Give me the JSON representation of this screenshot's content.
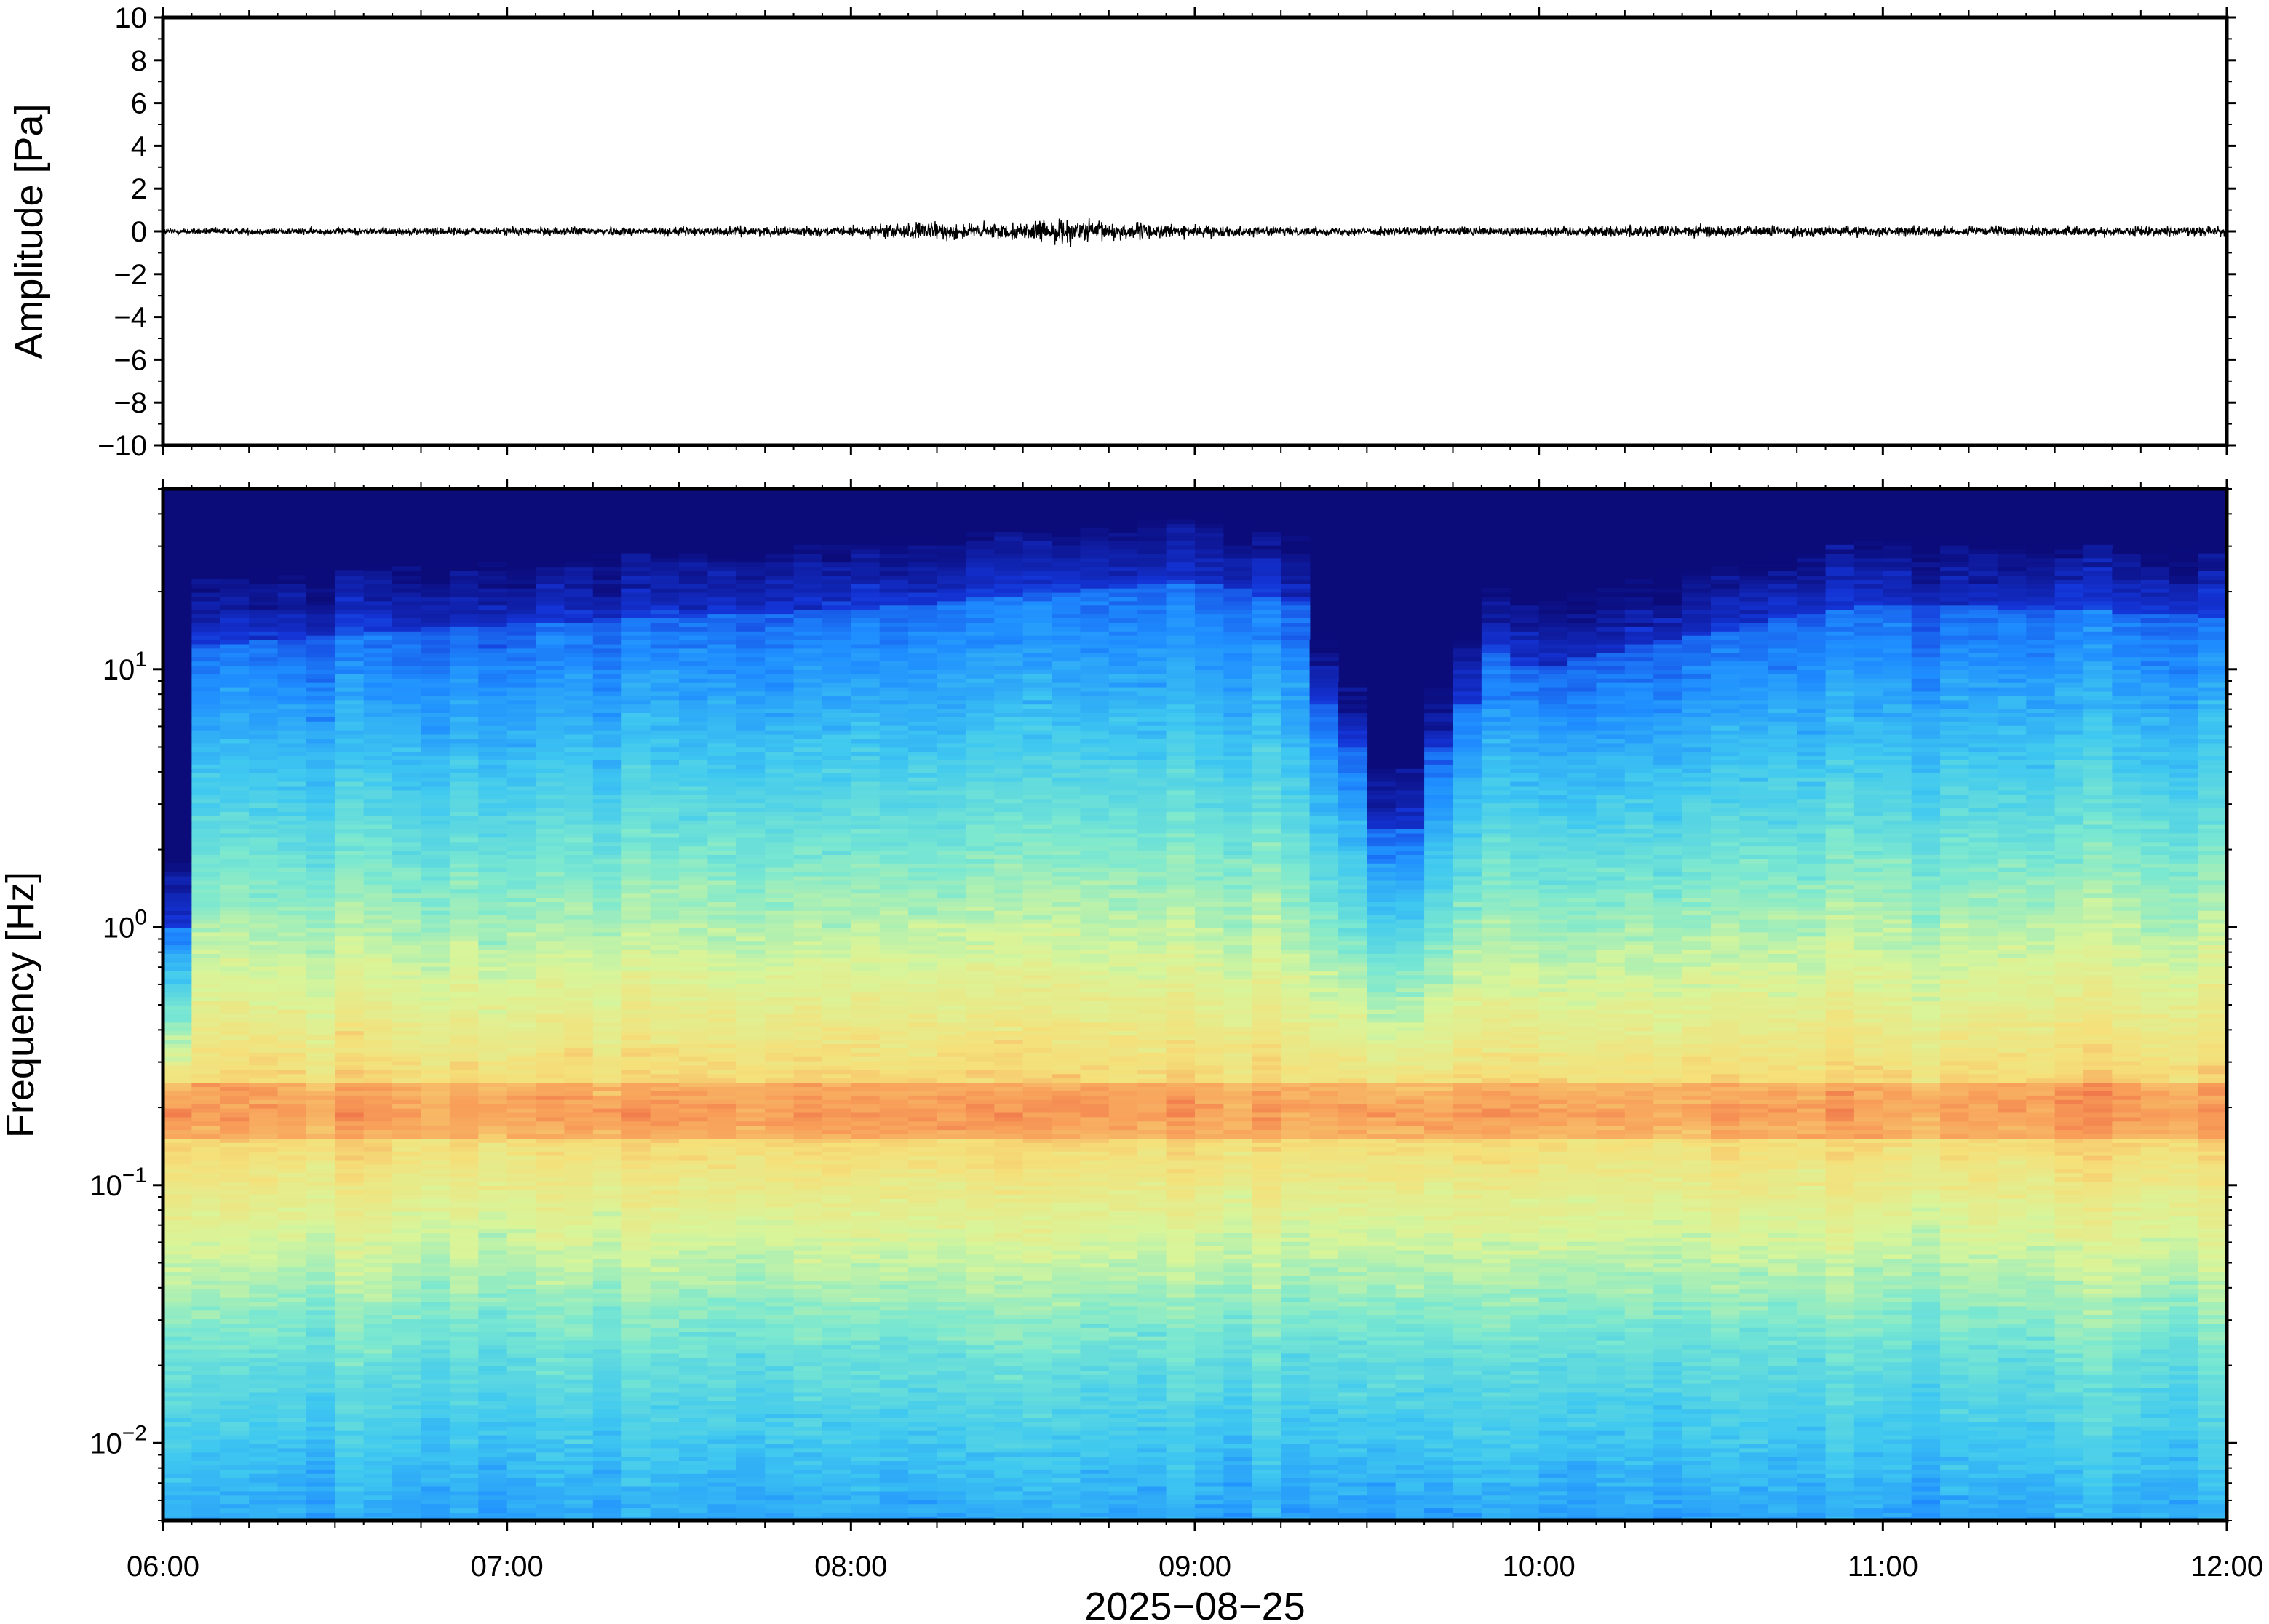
{
  "chart_data": [
    {
      "type": "line",
      "title": "",
      "ylabel": "Amplitude [Pa]",
      "ylim": [
        -10,
        10
      ],
      "yticks": [
        10,
        8,
        6,
        4,
        2,
        0,
        -2,
        -4,
        -6,
        -8,
        -10
      ],
      "ytick_labels": [
        "10",
        "8",
        "6",
        "4",
        "2",
        "0",
        "−2",
        "−4",
        "−6",
        "−8",
        "−10"
      ],
      "x_range": [
        "06:00",
        "12:00"
      ],
      "noise_envelope": {
        "times": [
          "06:00",
          "07:00",
          "08:00",
          "08:10",
          "08:30",
          "08:35",
          "09:00",
          "09:20",
          "10:00",
          "10:20",
          "11:00",
          "12:00"
        ],
        "peak_abs_pa": [
          0.2,
          0.25,
          0.3,
          0.55,
          0.5,
          0.8,
          0.35,
          0.25,
          0.3,
          0.4,
          0.3,
          0.3
        ]
      },
      "series": [
        {
          "values_note": ""
        }
      ],
      "color": "#000000"
    },
    {
      "type": "heatmap",
      "ylabel": "Frequency [Hz]",
      "yscale": "log",
      "ylim": [
        0.005,
        50
      ],
      "ytick_labels": [
        {
          "base": "10",
          "exp": "1"
        },
        {
          "base": "10",
          "exp": "0"
        },
        {
          "base": "10",
          "exp": "−1"
        },
        {
          "base": "10",
          "exp": "−2"
        }
      ],
      "xlabel": "2025−08−25",
      "xtick_labels": [
        "06:00",
        "07:00",
        "08:00",
        "09:00",
        "10:00",
        "11:00",
        "12:00"
      ],
      "colormap": [
        "#0b0b7a",
        "#1435d8",
        "#1e8cff",
        "#3fc8f0",
        "#7be8d0",
        "#d8f59a",
        "#f5e07a",
        "#f8a05a",
        "#e8503c"
      ],
      "upper_edge_hz_by_hour": [
        12,
        15,
        17,
        22,
        10,
        18,
        16
      ],
      "dip_time": "09:35",
      "peak_band_hz": [
        0.15,
        0.25
      ],
      "low_band_hz": [
        0.005,
        0.02
      ]
    }
  ]
}
